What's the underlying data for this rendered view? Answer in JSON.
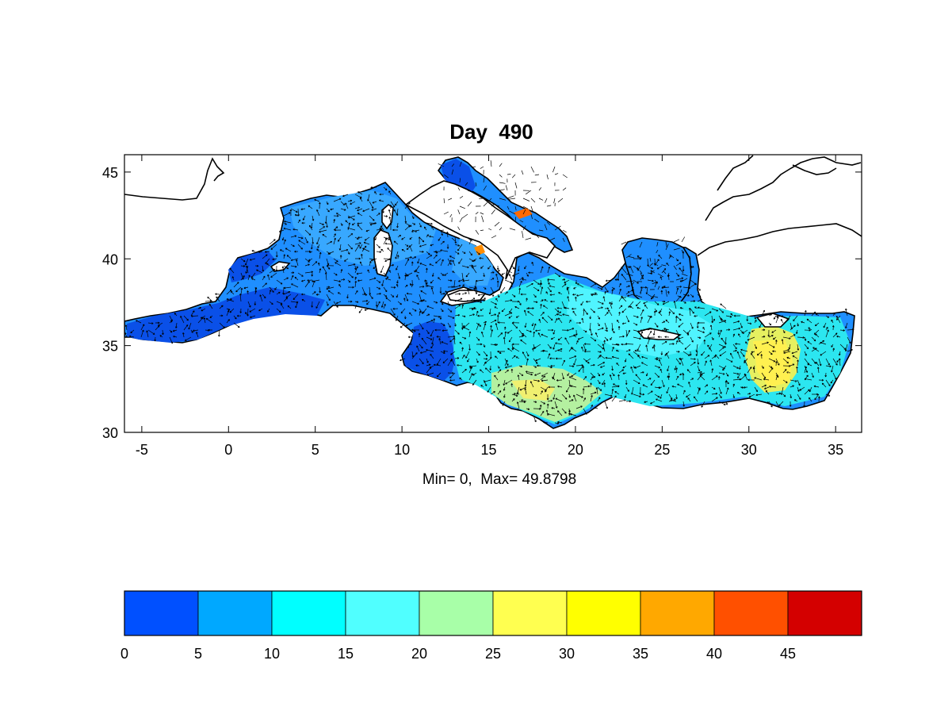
{
  "title": "Day  490",
  "stats_label": "Min= 0,  Max= 49.8798",
  "map": {
    "lon_range": [
      -6,
      36.5
    ],
    "lat_range": [
      30,
      46
    ],
    "x_ticks": [
      -5,
      0,
      5,
      10,
      15,
      20,
      25,
      30,
      35
    ],
    "y_ticks": [
      30,
      35,
      40,
      45
    ]
  },
  "colorbar": {
    "range": [
      0,
      50
    ],
    "step": 5,
    "tick_labels": [
      "0",
      "5",
      "10",
      "15",
      "20",
      "25",
      "30",
      "35",
      "40",
      "45"
    ],
    "colors": [
      "#0050ff",
      "#00a8ff",
      "#00ffff",
      "#50ffff",
      "#a8ffa8",
      "#ffff50",
      "#ffff00",
      "#ffa800",
      "#ff5000",
      "#d40000"
    ]
  },
  "colors": {
    "land_outline": "#000000",
    "background": "#ffffff"
  }
}
